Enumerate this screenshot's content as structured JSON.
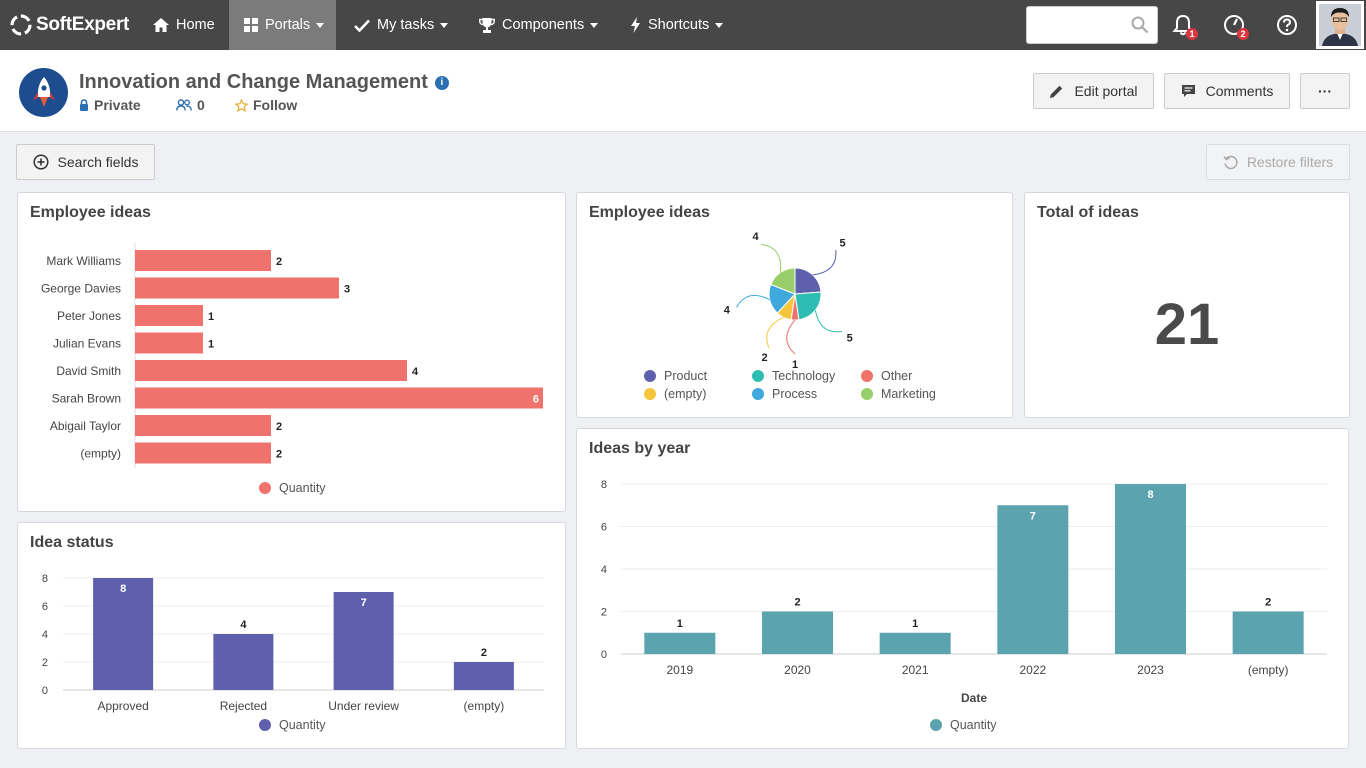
{
  "brand": {
    "name": "SoftExpert"
  },
  "nav": {
    "home": "Home",
    "portals": "Portals",
    "my_tasks": "My tasks",
    "components": "Components",
    "shortcuts": "Shortcuts"
  },
  "search": {
    "placeholder": ""
  },
  "notifications": {
    "bell_count": "1",
    "task_count": "2"
  },
  "portal": {
    "title": "Innovation and Change Management",
    "privacy": "Private",
    "members": "0",
    "follow": "Follow"
  },
  "actions": {
    "edit_portal": "Edit portal",
    "comments": "Comments",
    "more": "···",
    "search_fields": "Search fields",
    "restore_filters": "Restore filters"
  },
  "colors": {
    "employee_bar": "#f0726d",
    "status_bar": "#5e60ad",
    "year_bar": "#5ba3ae",
    "pie_product": "#5e60ad",
    "pie_technology": "#2ebdb3",
    "pie_other": "#f0726d",
    "pie_empty": "#f5c63c",
    "pie_process": "#3fa9dd",
    "pie_marketing": "#98cf6b"
  },
  "panels": {
    "employee_bar_title": "Employee ideas",
    "employee_pie_title": "Employee ideas",
    "total_title": "Total of ideas",
    "status_title": "Idea status",
    "year_title": "Ideas by year"
  },
  "total": {
    "value": "21"
  },
  "chart_data": [
    {
      "type": "bar",
      "orientation": "horizontal",
      "categories": [
        "Mark Williams",
        "George Davies",
        "Peter Jones",
        "Julian Evans",
        "David Smith",
        "Sarah Brown",
        "Abigail Taylor",
        "(empty)"
      ],
      "series": [
        {
          "name": "Quantity",
          "values": [
            2,
            3,
            1,
            1,
            4,
            6,
            2,
            2
          ]
        }
      ],
      "title": "Employee ideas",
      "legend": "bottom"
    },
    {
      "type": "pie",
      "title": "Employee ideas",
      "slices": [
        {
          "label": "Product",
          "value": 5
        },
        {
          "label": "Technology",
          "value": 5
        },
        {
          "label": "Other",
          "value": 1
        },
        {
          "label": "(empty)",
          "value": 2
        },
        {
          "label": "Process",
          "value": 4
        },
        {
          "label": "Marketing",
          "value": 4
        }
      ],
      "legend": "bottom"
    },
    {
      "type": "bar",
      "title": "Idea status",
      "categories": [
        "Approved",
        "Rejected",
        "Under review",
        "(empty)"
      ],
      "series": [
        {
          "name": "Quantity",
          "values": [
            8,
            4,
            7,
            2
          ]
        }
      ],
      "yticks": [
        0,
        2,
        4,
        6,
        8
      ],
      "ylim": [
        0,
        8
      ],
      "grid": true,
      "legend": "bottom"
    },
    {
      "type": "bar",
      "title": "Ideas by year",
      "categories": [
        "2019",
        "2020",
        "2021",
        "2022",
        "2023",
        "(empty)"
      ],
      "series": [
        {
          "name": "Quantity",
          "values": [
            1,
            2,
            1,
            7,
            8,
            2
          ]
        }
      ],
      "xlabel": "Date",
      "yticks": [
        0,
        2,
        4,
        6,
        8
      ],
      "ylim": [
        0,
        8
      ],
      "grid": true,
      "legend": "bottom"
    }
  ]
}
